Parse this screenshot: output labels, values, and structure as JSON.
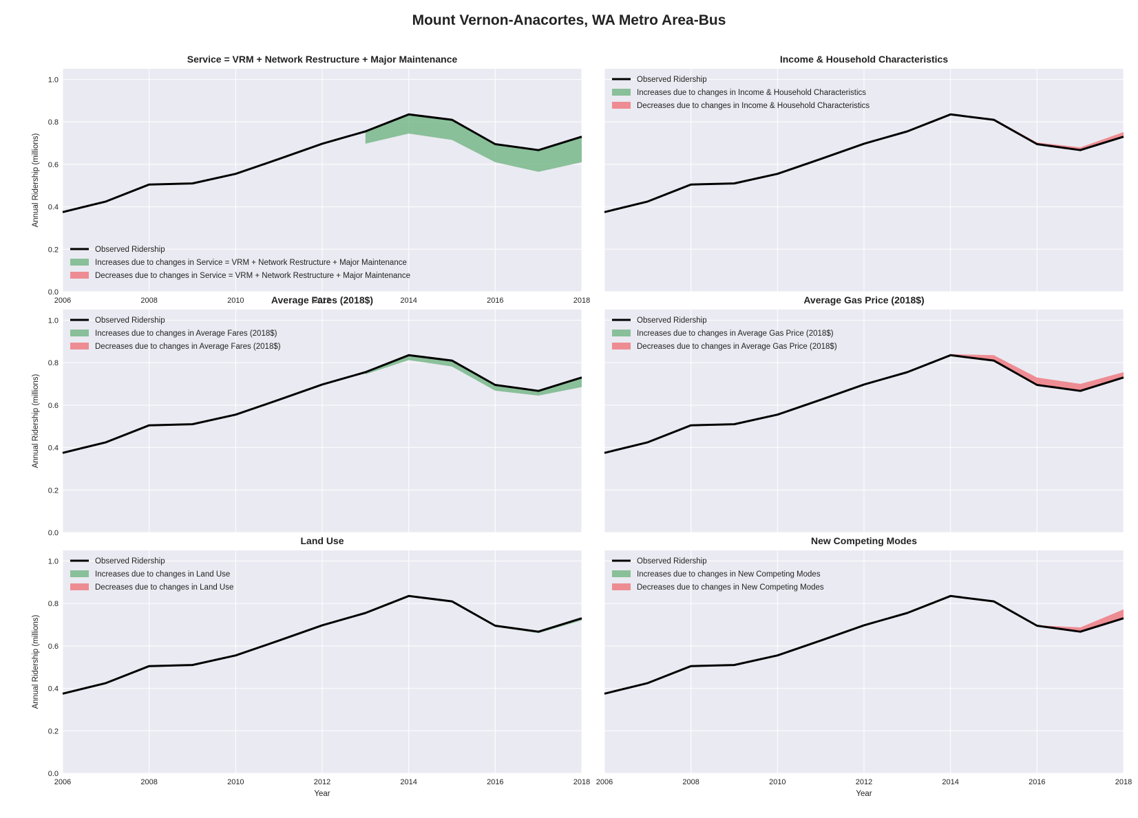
{
  "title": "Mount Vernon-Anacortes, WA Metro Area-Bus",
  "colors": {
    "panel_bg": "#eaeaf2",
    "grid": "#ffffff",
    "observed": "#000000",
    "increase": "#55a868",
    "decrease": "#f0595f"
  },
  "chart_data": [
    {
      "type": "area",
      "title": "Service = VRM + Network Restructure + Major Maintenance",
      "xlabel": "",
      "ylabel": "Annual Ridership (millions)",
      "xlim": [
        2006,
        2018
      ],
      "ylim": [
        0,
        1.05
      ],
      "xticks": [
        "2006",
        "2008",
        "2010",
        "2012",
        "2014",
        "2016",
        "2018"
      ],
      "yticks": [
        "0.0",
        "0.2",
        "0.4",
        "0.6",
        "0.8",
        "1.0"
      ],
      "grid": true,
      "legend_position": "lower-left",
      "legend": [
        "Observed Ridership",
        "Increases due to changes in Service = VRM + Network Restructure + Major Maintenance",
        "Decreases due to changes in Service = VRM + Network Restructure + Major Maintenance"
      ],
      "x": [
        2006,
        2007,
        2008,
        2009,
        2010,
        2011,
        2012,
        2013,
        2014,
        2015,
        2016,
        2017,
        2018
      ],
      "observed": [
        0.375,
        0.425,
        0.505,
        0.51,
        0.555,
        0.625,
        0.697,
        0.755,
        0.835,
        0.81,
        0.695,
        0.667,
        0.73
      ],
      "counterfactual": [
        0.375,
        0.425,
        0.505,
        0.51,
        0.555,
        0.625,
        0.697,
        0.697,
        0.745,
        0.715,
        0.61,
        0.565,
        0.61
      ]
    },
    {
      "type": "area",
      "title": "Income & Household Characteristics",
      "xlabel": "",
      "ylabel": "",
      "xlim": [
        2006,
        2018
      ],
      "ylim": [
        0,
        1.05
      ],
      "xticks": [],
      "yticks": [],
      "grid": true,
      "legend_position": "upper-left",
      "legend": [
        "Observed Ridership",
        "Increases due to changes in Income & Household Characteristics",
        "Decreases due to changes in Income & Household Characteristics"
      ],
      "x": [
        2006,
        2007,
        2008,
        2009,
        2010,
        2011,
        2012,
        2013,
        2014,
        2015,
        2016,
        2017,
        2018
      ],
      "observed": [
        0.375,
        0.425,
        0.505,
        0.51,
        0.555,
        0.625,
        0.697,
        0.755,
        0.835,
        0.81,
        0.695,
        0.667,
        0.73
      ],
      "counterfactual": [
        0.375,
        0.425,
        0.505,
        0.51,
        0.555,
        0.625,
        0.697,
        0.755,
        0.835,
        0.815,
        0.703,
        0.68,
        0.752
      ]
    },
    {
      "type": "area",
      "title": "Average Fares (2018$)",
      "xlabel": "",
      "ylabel": "Annual Ridership (millions)",
      "xlim": [
        2006,
        2018
      ],
      "ylim": [
        0,
        1.05
      ],
      "xticks": [],
      "yticks": [
        "0.0",
        "0.2",
        "0.4",
        "0.6",
        "0.8",
        "1.0"
      ],
      "grid": true,
      "legend_position": "upper-left",
      "legend": [
        "Observed Ridership",
        "Increases due to changes in Average Fares (2018$)",
        "Decreases due to changes in Average Fares (2018$)"
      ],
      "x": [
        2006,
        2007,
        2008,
        2009,
        2010,
        2011,
        2012,
        2013,
        2014,
        2015,
        2016,
        2017,
        2018
      ],
      "observed": [
        0.375,
        0.425,
        0.505,
        0.51,
        0.555,
        0.625,
        0.697,
        0.755,
        0.835,
        0.81,
        0.695,
        0.667,
        0.73
      ],
      "counterfactual": [
        0.375,
        0.425,
        0.505,
        0.51,
        0.555,
        0.625,
        0.697,
        0.745,
        0.812,
        0.782,
        0.668,
        0.645,
        0.685
      ]
    },
    {
      "type": "area",
      "title": "Average Gas Price (2018$)",
      "xlabel": "",
      "ylabel": "",
      "xlim": [
        2006,
        2018
      ],
      "ylim": [
        0,
        1.05
      ],
      "xticks": [],
      "yticks": [],
      "grid": true,
      "legend_position": "upper-left",
      "legend": [
        "Observed Ridership",
        "Increases due to changes in Average Gas Price (2018$)",
        "Decreases due to changes in Average Gas Price (2018$)"
      ],
      "x": [
        2006,
        2007,
        2008,
        2009,
        2010,
        2011,
        2012,
        2013,
        2014,
        2015,
        2016,
        2017,
        2018
      ],
      "observed": [
        0.375,
        0.425,
        0.505,
        0.51,
        0.555,
        0.625,
        0.697,
        0.755,
        0.835,
        0.81,
        0.695,
        0.667,
        0.73
      ],
      "counterfactual": [
        0.375,
        0.425,
        0.505,
        0.51,
        0.555,
        0.625,
        0.697,
        0.755,
        0.84,
        0.835,
        0.73,
        0.7,
        0.755
      ]
    },
    {
      "type": "area",
      "title": "Land Use",
      "xlabel": "Year",
      "ylabel": "Annual Ridership (millions)",
      "xlim": [
        2006,
        2018
      ],
      "ylim": [
        0,
        1.05
      ],
      "xticks": [
        "2006",
        "2008",
        "2010",
        "2012",
        "2014",
        "2016",
        "2018"
      ],
      "yticks": [
        "0.0",
        "0.2",
        "0.4",
        "0.6",
        "0.8",
        "1.0"
      ],
      "grid": true,
      "legend_position": "upper-left",
      "legend": [
        "Observed Ridership",
        "Increases due to changes in Land Use",
        "Decreases due to changes in Land Use"
      ],
      "x": [
        2006,
        2007,
        2008,
        2009,
        2010,
        2011,
        2012,
        2013,
        2014,
        2015,
        2016,
        2017,
        2018
      ],
      "observed": [
        0.375,
        0.425,
        0.505,
        0.51,
        0.555,
        0.625,
        0.697,
        0.755,
        0.835,
        0.81,
        0.695,
        0.667,
        0.73
      ],
      "counterfactual": [
        0.375,
        0.425,
        0.505,
        0.51,
        0.555,
        0.625,
        0.697,
        0.755,
        0.835,
        0.81,
        0.69,
        0.66,
        0.72
      ]
    },
    {
      "type": "area",
      "title": "New Competing Modes",
      "xlabel": "Year",
      "ylabel": "",
      "xlim": [
        2006,
        2018
      ],
      "ylim": [
        0,
        1.05
      ],
      "xticks": [
        "2006",
        "2008",
        "2010",
        "2012",
        "2014",
        "2016",
        "2018"
      ],
      "yticks": [],
      "grid": true,
      "legend_position": "upper-left",
      "legend": [
        "Observed Ridership",
        "Increases due to changes in New Competing Modes",
        "Decreases due to changes in New Competing Modes"
      ],
      "x": [
        2006,
        2007,
        2008,
        2009,
        2010,
        2011,
        2012,
        2013,
        2014,
        2015,
        2016,
        2017,
        2018
      ],
      "observed": [
        0.375,
        0.425,
        0.505,
        0.51,
        0.555,
        0.625,
        0.697,
        0.755,
        0.835,
        0.81,
        0.695,
        0.667,
        0.73
      ],
      "counterfactual": [
        0.375,
        0.425,
        0.505,
        0.51,
        0.555,
        0.625,
        0.697,
        0.755,
        0.835,
        0.81,
        0.697,
        0.687,
        0.772
      ]
    }
  ]
}
